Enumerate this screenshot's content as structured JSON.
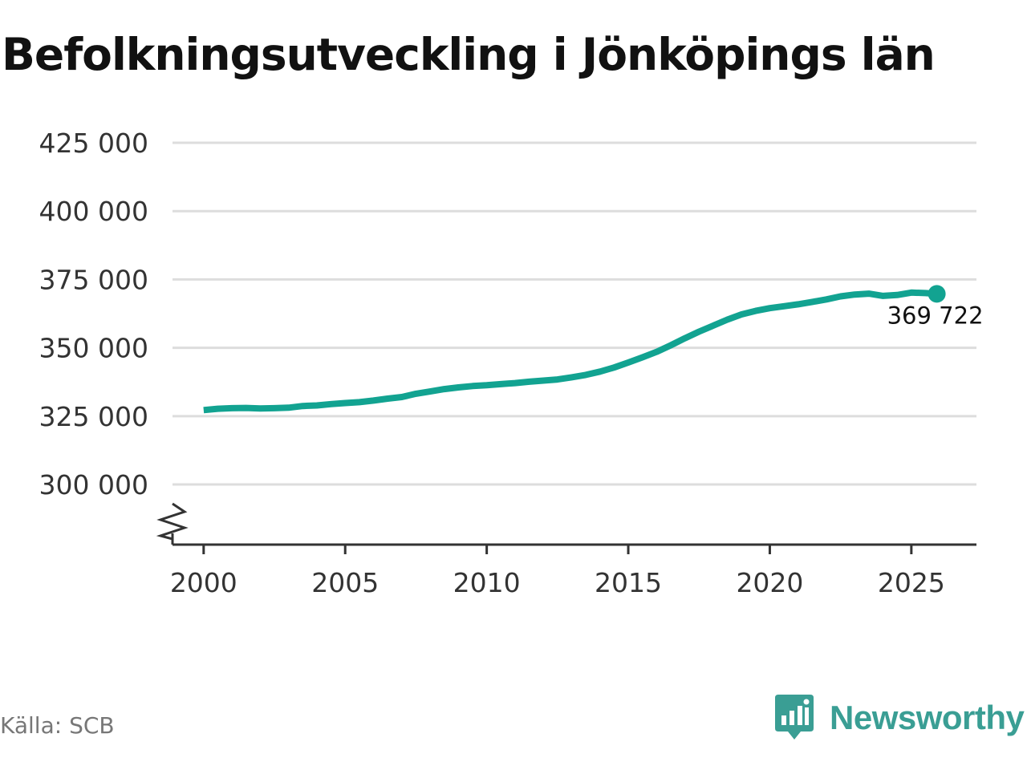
{
  "title": "Befolkningsutveckling i Jönköpings län",
  "source": "Källa: SCB",
  "brand": {
    "name": "Newsworthy",
    "icon": "newsworthy-logo-icon",
    "color": "#3a9e94"
  },
  "colors": {
    "line": "#12a391",
    "grid": "#dddddd",
    "axis": "#333333"
  },
  "chart_data": {
    "type": "line",
    "title": "Befolkningsutveckling i Jönköpings län",
    "xlabel": "",
    "ylabel": "",
    "xlim": [
      1998.9,
      2027.3
    ],
    "ylim": [
      278000,
      425000
    ],
    "axis_break": true,
    "grid": true,
    "legend": "none",
    "yticks": [
      300000,
      325000,
      350000,
      375000,
      400000,
      425000
    ],
    "ytick_labels": [
      "300 000",
      "325 000",
      "350 000",
      "375 000",
      "400 000",
      "425 000"
    ],
    "xticks": [
      2000,
      2005,
      2010,
      2015,
      2020,
      2025
    ],
    "xtick_labels": [
      "2000",
      "2005",
      "2010",
      "2015",
      "2020",
      "2025"
    ],
    "series": [
      {
        "x": [
          2000.0,
          2000.5,
          2001.0,
          2001.5,
          2002.0,
          2002.5,
          2003.0,
          2003.5,
          2004.0,
          2004.5,
          2005.0,
          2005.5,
          2006.0,
          2006.5,
          2007.0,
          2007.5,
          2008.0,
          2008.5,
          2009.0,
          2009.5,
          2010.0,
          2010.5,
          2011.0,
          2011.5,
          2012.0,
          2012.5,
          2013.0,
          2013.5,
          2014.0,
          2014.5,
          2015.0,
          2015.5,
          2016.0,
          2016.5,
          2017.0,
          2017.5,
          2018.0,
          2018.5,
          2019.0,
          2019.5,
          2020.0,
          2020.5,
          2021.0,
          2021.5,
          2022.0,
          2022.5,
          2023.0,
          2023.5,
          2024.0,
          2024.5,
          2025.0,
          2025.5,
          2025.9
        ],
        "y": [
          327200,
          327700,
          327900,
          328000,
          327800,
          327900,
          328100,
          328700,
          328900,
          329400,
          329800,
          330100,
          330700,
          331400,
          332000,
          333200,
          334000,
          334900,
          335500,
          336000,
          336300,
          336700,
          337100,
          337600,
          338000,
          338400,
          339200,
          340100,
          341300,
          342800,
          344600,
          346500,
          348500,
          350900,
          353500,
          355900,
          358100,
          360300,
          362200,
          363500,
          364500,
          365200,
          365900,
          366800,
          367700,
          368800,
          369500,
          369800,
          369000,
          369300,
          370200,
          370000,
          369722
        ]
      }
    ],
    "end_value": 369722,
    "end_label": "369 722"
  }
}
